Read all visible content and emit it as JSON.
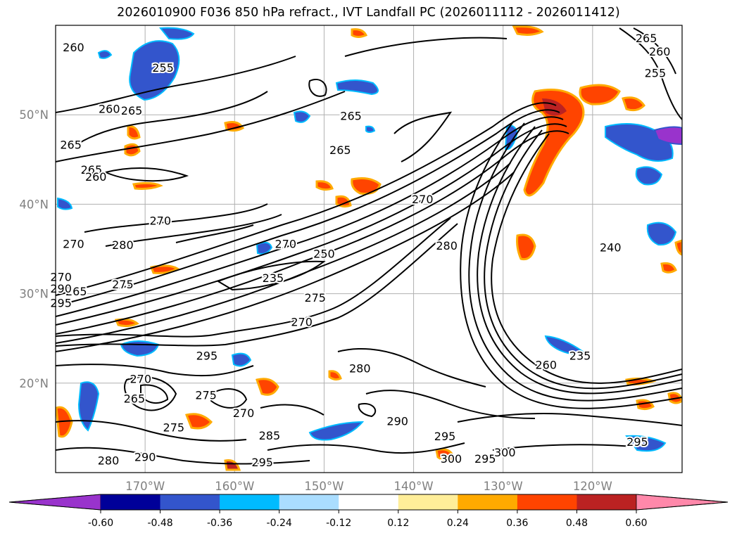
{
  "title": "2026010900 F036 850 hPa refract., IVT Landfall PC (2026011112 - 2026011412)",
  "map": {
    "projection": "cylindrical",
    "lon_range": [
      -180,
      -110
    ],
    "lat_range": [
      10,
      60
    ],
    "gridlines": true,
    "lat_ticks": [
      {
        "value": 20,
        "label": "20°N"
      },
      {
        "value": 30,
        "label": "30°N"
      },
      {
        "value": 40,
        "label": "40°N"
      },
      {
        "value": 50,
        "label": "50°N"
      }
    ],
    "lon_ticks": [
      {
        "value": -170,
        "label": "170°W"
      },
      {
        "value": -160,
        "label": "160°W"
      },
      {
        "value": -150,
        "label": "150°W"
      },
      {
        "value": -140,
        "label": "140°W"
      },
      {
        "value": -130,
        "label": "130°W"
      },
      {
        "value": -120,
        "label": "120°W"
      }
    ],
    "contour_labels": [
      {
        "text": "260",
        "lon": -178,
        "lat": 57.5
      },
      {
        "text": "260",
        "lon": -174,
        "lat": 50.6
      },
      {
        "text": "255",
        "lon": -168,
        "lat": 55.2
      },
      {
        "text": "265",
        "lon": -171.5,
        "lat": 50.4
      },
      {
        "text": "265",
        "lon": -178.3,
        "lat": 46.6
      },
      {
        "text": "265",
        "lon": -176,
        "lat": 43.8
      },
      {
        "text": "260",
        "lon": -175.5,
        "lat": 43.0
      },
      {
        "text": "265",
        "lon": -147,
        "lat": 49.8
      },
      {
        "text": "265",
        "lon": -148.2,
        "lat": 46.0
      },
      {
        "text": "270",
        "lon": -168.3,
        "lat": 38.1
      },
      {
        "text": "270",
        "lon": -178,
        "lat": 35.5
      },
      {
        "text": "280",
        "lon": -172.5,
        "lat": 35.4
      },
      {
        "text": "270",
        "lon": -154.3,
        "lat": 35.5
      },
      {
        "text": "250",
        "lon": -150,
        "lat": 34.4
      },
      {
        "text": "275",
        "lon": -172.5,
        "lat": 31.0
      },
      {
        "text": "265",
        "lon": -177.7,
        "lat": 30.2
      },
      {
        "text": "235",
        "lon": -155.7,
        "lat": 31.7
      },
      {
        "text": "275",
        "lon": -151,
        "lat": 29.5
      },
      {
        "text": "270",
        "lon": -152.5,
        "lat": 26.8
      },
      {
        "text": "290",
        "lon": -184.8,
        "lat": 30.5
      },
      {
        "text": "295",
        "lon": -187,
        "lat": 28.9
      },
      {
        "text": "270",
        "lon": -186.3,
        "lat": 31.8
      },
      {
        "text": "270",
        "lon": -139,
        "lat": 40.5
      },
      {
        "text": "280",
        "lon": -136.3,
        "lat": 35.3
      },
      {
        "text": "295",
        "lon": -163.1,
        "lat": 23.0
      },
      {
        "text": "280",
        "lon": -146,
        "lat": 21.6
      },
      {
        "text": "270",
        "lon": -170.5,
        "lat": 20.4
      },
      {
        "text": "265",
        "lon": -171.2,
        "lat": 18.2
      },
      {
        "text": "275",
        "lon": -163.2,
        "lat": 18.6
      },
      {
        "text": "270",
        "lon": -159,
        "lat": 16.6
      },
      {
        "text": "275",
        "lon": -166.8,
        "lat": 15.0
      },
      {
        "text": "285",
        "lon": -156.1,
        "lat": 14.1
      },
      {
        "text": "290",
        "lon": -170,
        "lat": 11.7
      },
      {
        "text": "280",
        "lon": -174.1,
        "lat": 11.3
      },
      {
        "text": "295",
        "lon": -156.9,
        "lat": 11.1
      },
      {
        "text": "290",
        "lon": -141.8,
        "lat": 15.7
      },
      {
        "text": "295",
        "lon": -136.5,
        "lat": 14.0
      },
      {
        "text": "300",
        "lon": -135.8,
        "lat": 11.5
      },
      {
        "text": "295",
        "lon": -132,
        "lat": 11.5
      },
      {
        "text": "300",
        "lon": -129.8,
        "lat": 12.2
      },
      {
        "text": "260",
        "lon": -125.2,
        "lat": 22.0
      },
      {
        "text": "235",
        "lon": -121.4,
        "lat": 23.0
      },
      {
        "text": "295",
        "lon": -115,
        "lat": 13.4
      },
      {
        "text": "265",
        "lon": -114,
        "lat": 58.5
      },
      {
        "text": "260",
        "lon": -112.5,
        "lat": 57.0
      },
      {
        "text": "255",
        "lon": -113,
        "lat": 54.6
      },
      {
        "text": "240",
        "lon": -118,
        "lat": 35.1
      }
    ]
  },
  "colorbar": {
    "ticks": [
      "-0.60",
      "-0.48",
      "-0.36",
      "-0.24",
      "-0.12",
      "0.12",
      "0.24",
      "0.36",
      "0.48",
      "0.60"
    ],
    "under_color": "#9933cc",
    "over_color": "#ff88aa",
    "colors": [
      "#9933cc",
      "#000099",
      "#3355cc",
      "#00bbff",
      "#aaddff",
      "#ffffff",
      "#ffee99",
      "#ffaa00",
      "#ff4400",
      "#bb2222",
      "#ff88aa"
    ]
  }
}
